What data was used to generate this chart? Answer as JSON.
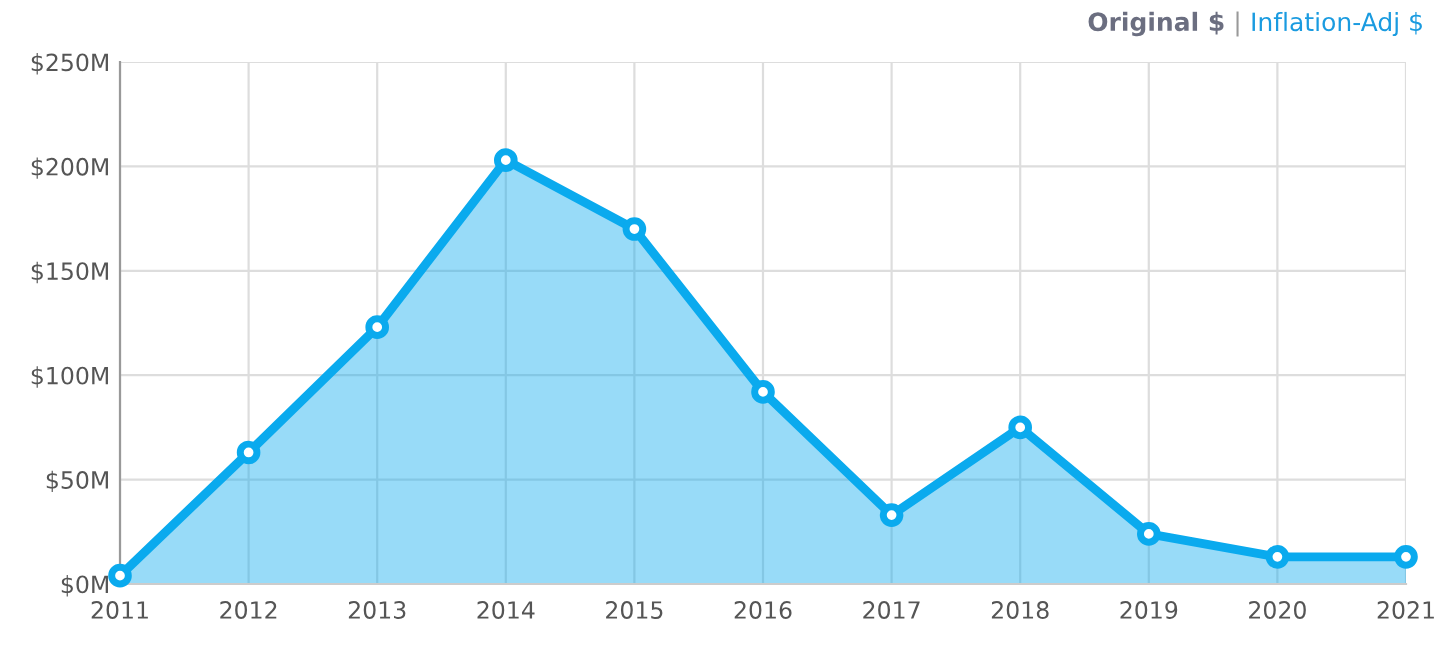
{
  "chart_data": {
    "type": "area",
    "x": [
      2011,
      2012,
      2013,
      2014,
      2015,
      2016,
      2017,
      2018,
      2019,
      2020,
      2021
    ],
    "series": [
      {
        "color": "#0aaaee",
        "values": [
          4,
          63,
          123,
          203,
          170,
          92,
          33,
          75,
          24,
          13,
          13
        ]
      }
    ],
    "xlim": [
      2011,
      2021
    ],
    "xticks": [
      2011,
      2012,
      2013,
      2014,
      2015,
      2016,
      2017,
      2018,
      2019,
      2020,
      2021
    ],
    "ylim": [
      0,
      250
    ],
    "yticks": [
      {
        "value": 0,
        "label": "$0M"
      },
      {
        "value": 50,
        "label": "$50M"
      },
      {
        "value": 100,
        "label": "$100M"
      },
      {
        "value": 150,
        "label": "$150M"
      },
      {
        "value": 200,
        "label": "$200M"
      },
      {
        "value": 250,
        "label": "$250M"
      }
    ],
    "grid": true,
    "marker": "circle",
    "line_style": "solid",
    "annotations": [
      "Original $",
      "|",
      "Inflation-Adj $"
    ]
  }
}
